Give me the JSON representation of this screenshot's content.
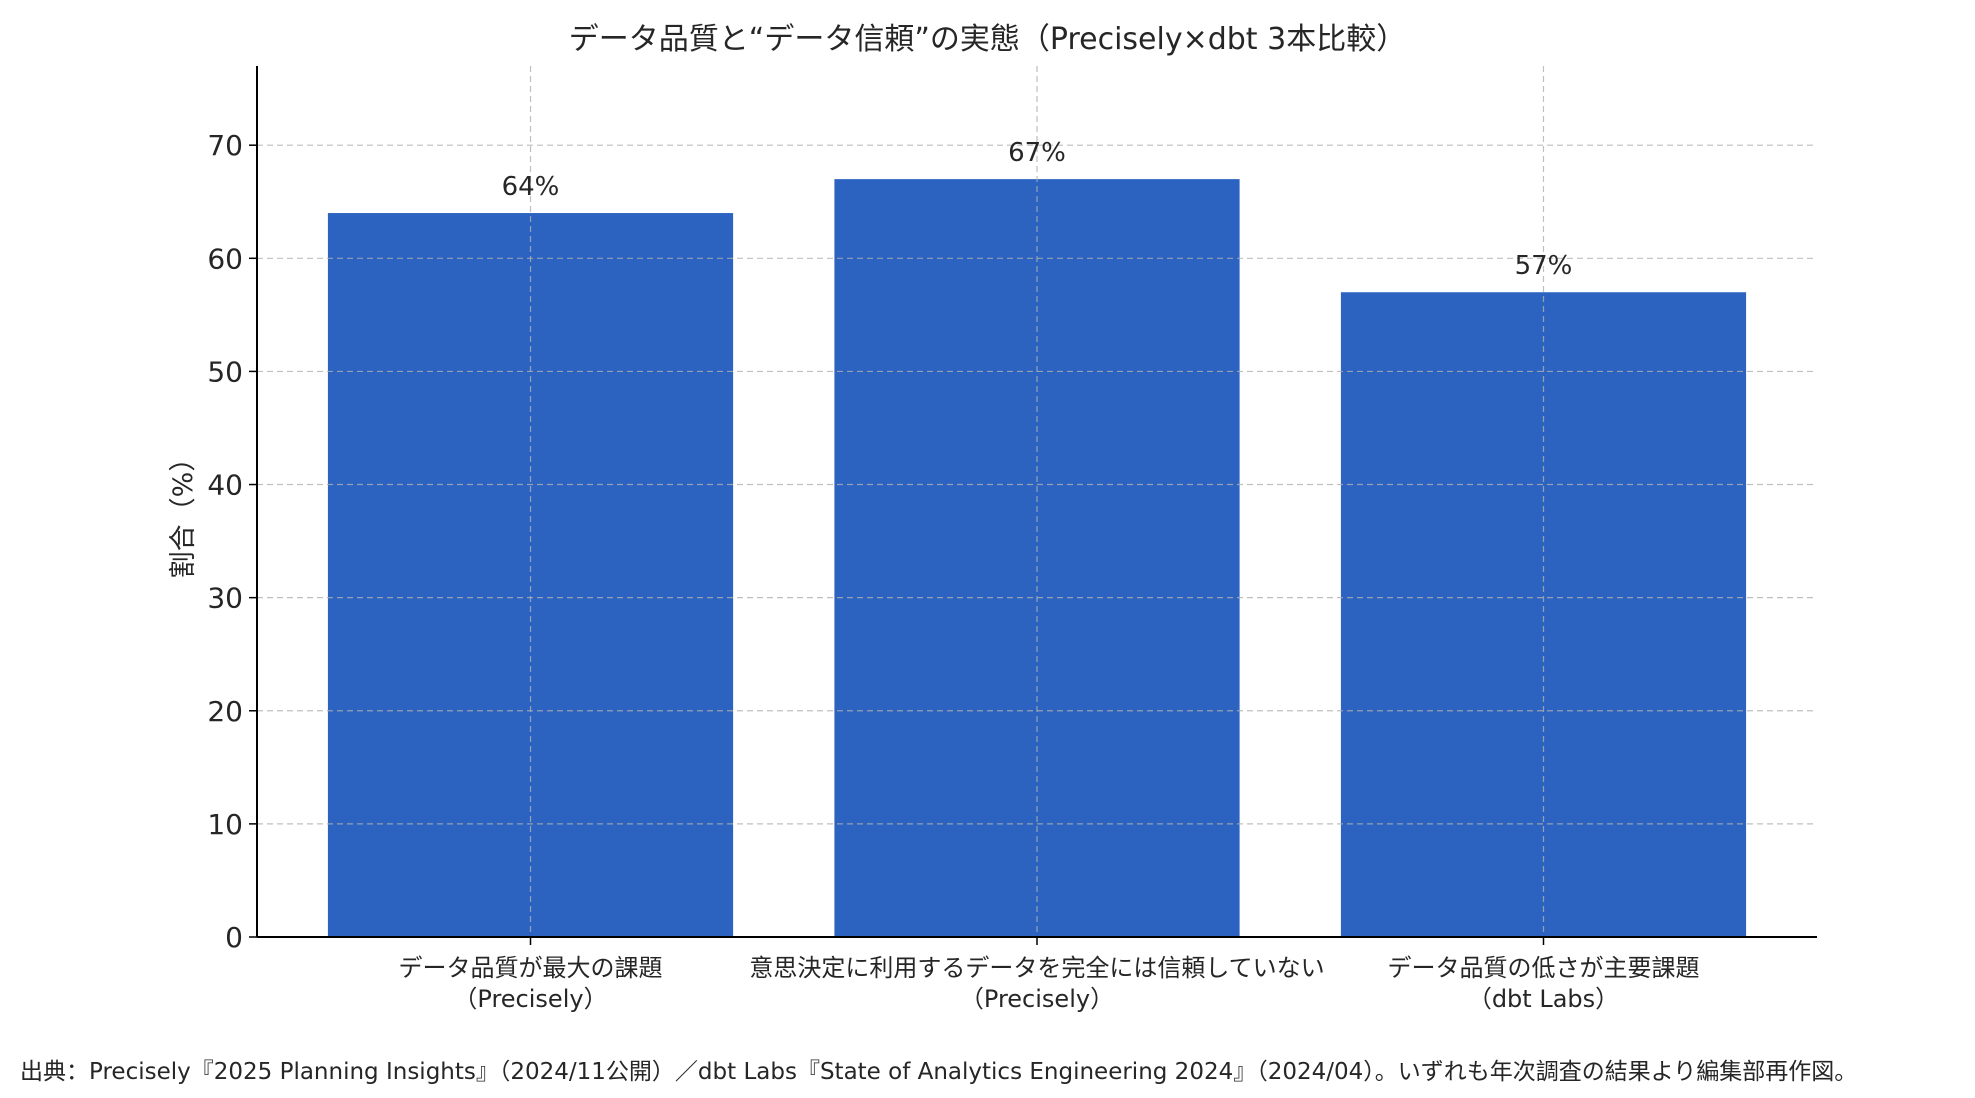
{
  "chart_data": {
    "type": "bar",
    "title": "データ品質と“データ信頼”の実態（Precisely×dbt 3本比較）",
    "xlabel": "",
    "ylabel": "割合（%）",
    "categories": [
      [
        "データ品質が最大の課題",
        "（Precisely）"
      ],
      [
        "意思決定に利用するデータを完全には信頼していない",
        "（Precisely）"
      ],
      [
        "データ品質の低さが主要課題",
        "（dbt Labs）"
      ]
    ],
    "values": [
      64,
      67,
      57
    ],
    "data_labels": [
      "64%",
      "67%",
      "57%"
    ],
    "ylim": [
      0,
      77
    ],
    "yticks": [
      0,
      10,
      20,
      30,
      40,
      50,
      60,
      70
    ],
    "grid": true,
    "bar_color": "#2c63c1",
    "source_note": "出典：Precisely『2025 Planning Insights』（2024/11公開）／dbt Labs『State of Analytics Engineering 2024』（2024/04）。いずれも年次調査の結果より編集部再作図。"
  }
}
